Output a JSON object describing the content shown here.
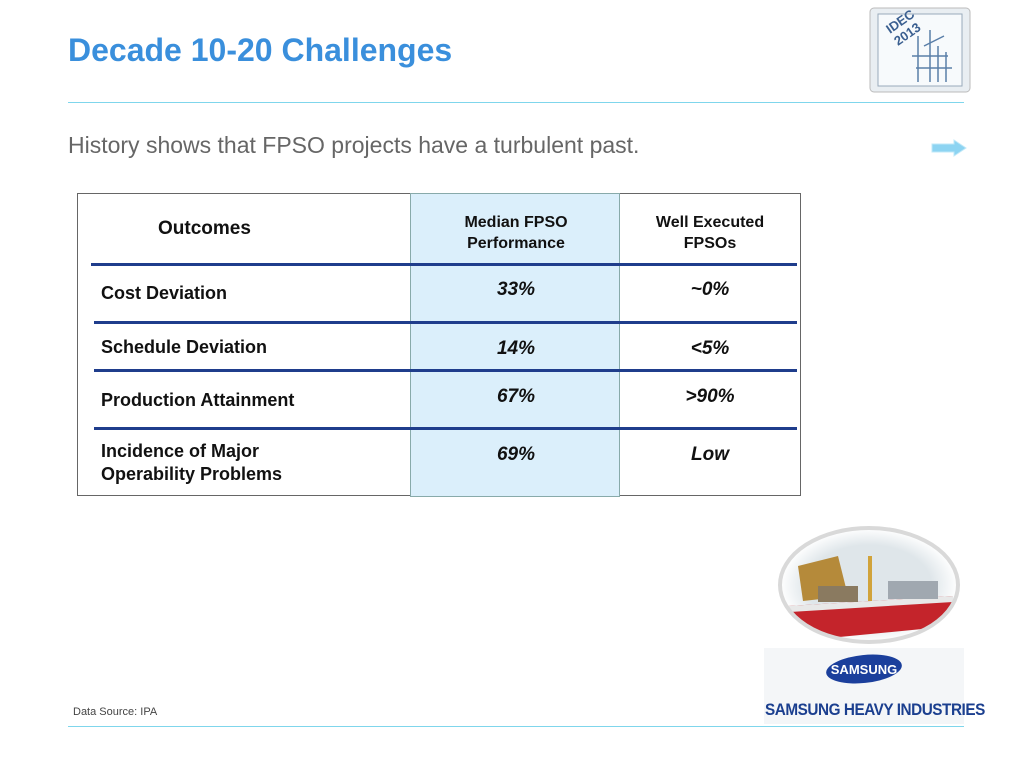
{
  "header": {
    "title": "Decade 10-20 Challenges",
    "subtitle": "History shows that FPSO projects have a turbulent past."
  },
  "badge": {
    "lines": [
      "IDEC",
      "2013"
    ]
  },
  "table": {
    "columns": [
      "Outcomes",
      "Median FPSO Performance",
      "Well Executed FPSOs"
    ],
    "rows": [
      [
        "Cost Deviation",
        "33%",
        "~0%"
      ],
      [
        "Schedule Deviation",
        "14%",
        "<5%"
      ],
      [
        "Production Attainment",
        "67%",
        ">90%"
      ],
      [
        "Incidence of Major Operability Problems",
        "69%",
        "Low"
      ]
    ]
  },
  "footer": {
    "source": "Data Source: IPA",
    "logo": "SAMSUNG",
    "company": "SAMSUNG HEAVY INDUSTRIES"
  }
}
